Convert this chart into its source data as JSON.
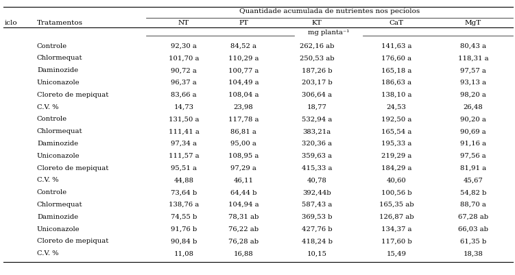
{
  "title": "Quantidade acumulada de nutrientes nos pecíolos",
  "cycle_label": "iclo",
  "treatments_label": "Tratamentos",
  "unit_label": "mg planta⁻¹",
  "col_labels": [
    "NT",
    "PT",
    "KT",
    "CaT",
    "MgT"
  ],
  "sections": [
    {
      "rows": [
        [
          "Controle",
          "92,30 a",
          "84,52 a",
          "262,16 ab",
          "141,63 a",
          "80,43 a"
        ],
        [
          "Chlormequat",
          "101,70 a",
          "110,29 a",
          "250,53 ab",
          "176,60 a",
          "118,31 a"
        ],
        [
          "Daminozide",
          "90,72 a",
          "100,77 a",
          "187,26 b",
          "165,18 a",
          "97,57 a"
        ],
        [
          "Uniconazole",
          "96,37 a",
          "104,49 a",
          "203,17 b",
          "186,63 a",
          "93,13 a"
        ],
        [
          "Cloreto de mepiquat",
          "83,66 a",
          "108,04 a",
          "306,64 a",
          "138,10 a",
          "98,20 a"
        ],
        [
          "C.V. %",
          "14,73",
          "23,98",
          "18,77",
          "24,53",
          "26,48"
        ]
      ]
    },
    {
      "rows": [
        [
          "Controle",
          "131,50 a",
          "117,78 a",
          "532,94 a",
          "192,50 a",
          "90,20 a"
        ],
        [
          "Chlormequat",
          "111,41 a",
          "86,81 a",
          "383,21a",
          "165,54 a",
          "90,69 a"
        ],
        [
          "Daminozide",
          "97,34 a",
          "95,00 a",
          "320,36 a",
          "195,33 a",
          "91,16 a"
        ],
        [
          "Uniconazole",
          "111,57 a",
          "108,95 a",
          "359,63 a",
          "219,29 a",
          "97,56 a"
        ],
        [
          "Cloreto de mepiquat",
          "95,51 a",
          "97,29 a",
          "415,33 a",
          "184,29 a",
          "81,91 a"
        ],
        [
          "C.V. %",
          "44,88",
          "46,11",
          "40,78",
          "40,60",
          "45,67"
        ]
      ]
    },
    {
      "rows": [
        [
          "Controle",
          "73,64 b",
          "64,44 b",
          "392,44b",
          "100,56 b",
          "54,82 b"
        ],
        [
          "Chlormequat",
          "138,76 a",
          "104,94 a",
          "587,43 a",
          "165,35 ab",
          "88,70 a"
        ],
        [
          "Daminozide",
          "74,55 b",
          "78,31 ab",
          "369,53 b",
          "126,87 ab",
          "67,28 ab"
        ],
        [
          "Uniconazole",
          "91,76 b",
          "76,22 ab",
          "427,76 b",
          "134,37 a",
          "66,03 ab"
        ],
        [
          "Cloreto de mepiquat",
          "90,84 b",
          "76,28 ab",
          "418,24 b",
          "117,60 b",
          "61,35 b"
        ],
        [
          "C.V. %",
          "11,08",
          "16,88",
          "10,15",
          "15,49",
          "18,38"
        ]
      ]
    }
  ],
  "background_color": "#ffffff",
  "text_color": "#000000",
  "font_size": 7.2,
  "header_font_size": 7.5,
  "lw_thick": 0.8,
  "lw_thin": 0.5
}
